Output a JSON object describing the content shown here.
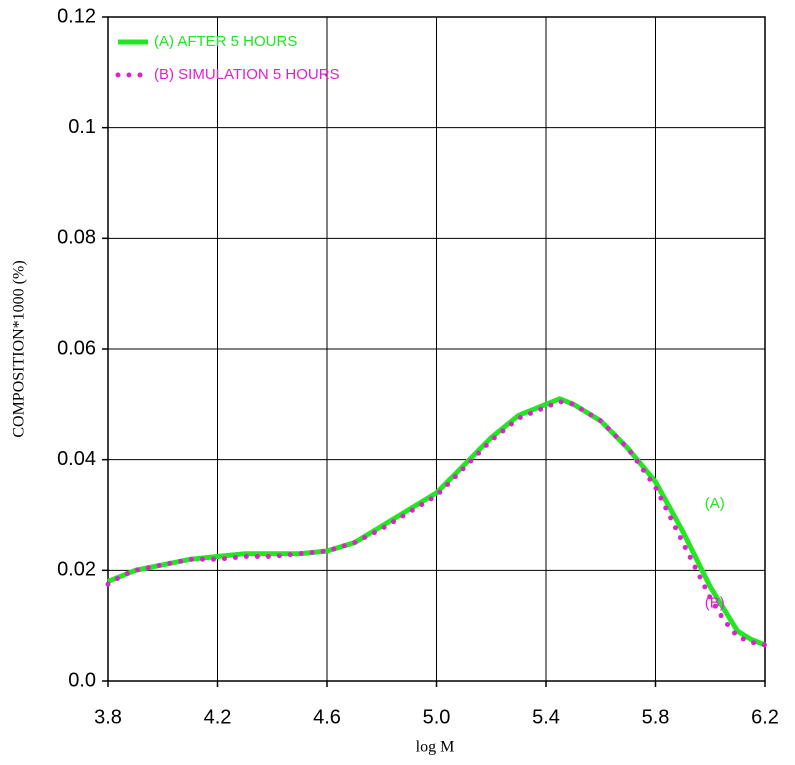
{
  "chart_data": {
    "type": "line",
    "x_label": "log M",
    "y_label": "COMPOSITION*1000 (%)",
    "xlim": [
      3.8,
      6.2
    ],
    "ylim": [
      0,
      0.12
    ],
    "xticks": [
      3.8,
      4.2,
      4.6,
      {
        "value": 5,
        "label": "5.0"
      },
      5.4,
      5.8,
      6.2
    ],
    "yticks": [
      {
        "value": 0,
        "label": "0.0"
      },
      0.02,
      0.04,
      0.06,
      0.08,
      0.1,
      0.12
    ],
    "grid": true,
    "legend": "upper left",
    "series": [
      {
        "name": "(A) AFTER 5 HOURS",
        "color": "#22e622",
        "style": "solid",
        "x": [
          3.8,
          3.85,
          3.9,
          4.0,
          4.1,
          4.2,
          4.3,
          4.4,
          4.5,
          4.6,
          4.7,
          4.8,
          4.9,
          5.0,
          5.1,
          5.2,
          5.3,
          5.4,
          5.45,
          5.5,
          5.6,
          5.7,
          5.8,
          5.9,
          6.0,
          6.1,
          6.15,
          6.2
        ],
        "values": [
          0.018,
          0.019,
          0.02,
          0.021,
          0.022,
          0.0225,
          0.023,
          0.023,
          0.023,
          0.0235,
          0.025,
          0.028,
          0.031,
          0.034,
          0.039,
          0.044,
          0.048,
          0.05,
          0.051,
          0.05,
          0.047,
          0.042,
          0.036,
          0.027,
          0.017,
          0.009,
          0.0075,
          0.0065
        ]
      },
      {
        "name": "(B) SIMULATION 5 HOURS",
        "color": "#e020d0",
        "style": "dotted",
        "x": [
          3.8,
          3.85,
          3.9,
          4.0,
          4.1,
          4.2,
          4.3,
          4.4,
          4.5,
          4.6,
          4.7,
          4.8,
          4.9,
          5.0,
          5.1,
          5.2,
          5.3,
          5.4,
          5.45,
          5.5,
          5.6,
          5.7,
          5.8,
          5.85,
          5.9,
          5.95,
          6.0,
          6.05,
          6.1,
          6.15,
          6.2
        ],
        "values": [
          0.0175,
          0.019,
          0.02,
          0.021,
          0.022,
          0.022,
          0.0225,
          0.0225,
          0.023,
          0.0235,
          0.025,
          0.0275,
          0.0305,
          0.0335,
          0.0385,
          0.0435,
          0.0475,
          0.0495,
          0.0505,
          0.05,
          0.047,
          0.042,
          0.035,
          0.03,
          0.025,
          0.02,
          0.015,
          0.011,
          0.008,
          0.007,
          0.0065
        ]
      }
    ],
    "annotations": [
      {
        "text": "(A)",
        "x": 5.98,
        "y": 0.032,
        "color": "#22e622"
      },
      {
        "text": "(B)",
        "x": 5.98,
        "y": 0.014,
        "color": "#e020d0"
      }
    ]
  }
}
